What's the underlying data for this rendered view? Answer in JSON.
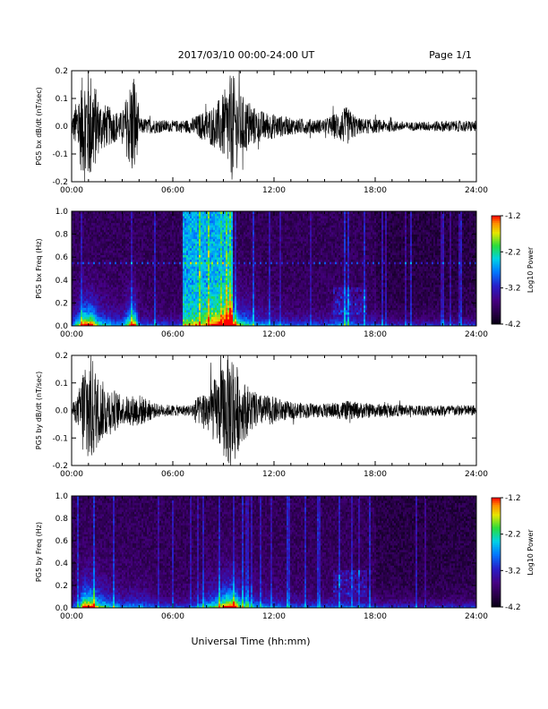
{
  "header": {
    "title": "2017/03/10   00:00-24:00 UT",
    "page": "Page 1/1"
  },
  "xlabel": "Universal Time (hh:mm)",
  "colorbar": {
    "label": "Log10 Power",
    "ticks": [
      "-1.2",
      "-2.2",
      "-3.2",
      "-4.2"
    ],
    "range": [
      -4.2,
      -1.2
    ]
  },
  "chart_data": [
    {
      "type": "line",
      "ylabel": "PG5 bx dB/dt (nT/sec)",
      "xlim": [
        0,
        24
      ],
      "ylim": [
        -0.2,
        0.2
      ],
      "x_ticks": [
        "00:00",
        "06:00",
        "12:00",
        "18:00",
        "24:00"
      ],
      "y_ticks": [
        "0.2",
        "0.1",
        "0.0",
        "-0.1",
        "-0.2"
      ],
      "envelope": [
        {
          "t": 0.0,
          "a": 0.03
        },
        {
          "t": 0.4,
          "a": 0.12
        },
        {
          "t": 0.8,
          "a": 0.22
        },
        {
          "t": 1.2,
          "a": 0.2
        },
        {
          "t": 1.6,
          "a": 0.1
        },
        {
          "t": 2.0,
          "a": 0.08
        },
        {
          "t": 2.5,
          "a": 0.06
        },
        {
          "t": 3.0,
          "a": 0.05
        },
        {
          "t": 3.7,
          "a": 0.22
        },
        {
          "t": 4.0,
          "a": 0.03
        },
        {
          "t": 5.0,
          "a": 0.025
        },
        {
          "t": 6.0,
          "a": 0.02
        },
        {
          "t": 7.0,
          "a": 0.025
        },
        {
          "t": 8.0,
          "a": 0.06
        },
        {
          "t": 8.5,
          "a": 0.08
        },
        {
          "t": 9.0,
          "a": 0.12
        },
        {
          "t": 9.5,
          "a": 0.2
        },
        {
          "t": 10.0,
          "a": 0.12
        },
        {
          "t": 11.0,
          "a": 0.06
        },
        {
          "t": 12.0,
          "a": 0.045
        },
        {
          "t": 13.0,
          "a": 0.03
        },
        {
          "t": 15.0,
          "a": 0.025
        },
        {
          "t": 16.3,
          "a": 0.07
        },
        {
          "t": 17.0,
          "a": 0.03
        },
        {
          "t": 18.0,
          "a": 0.025
        },
        {
          "t": 20.0,
          "a": 0.015
        },
        {
          "t": 22.0,
          "a": 0.02
        },
        {
          "t": 24.0,
          "a": 0.02
        }
      ]
    },
    {
      "type": "heatmap",
      "ylabel": "PG5 bx Freq (Hz)",
      "xlim": [
        0,
        24
      ],
      "ylim": [
        0,
        1.0
      ],
      "x_ticks": [
        "00:00",
        "06:00",
        "12:00",
        "18:00",
        "24:00"
      ],
      "y_ticks": [
        "1.0",
        "0.8",
        "0.6",
        "0.4",
        "0.2",
        "0.0"
      ],
      "band_hz": 0.55,
      "intense_block": {
        "t0": 6.6,
        "t1": 9.6,
        "level": 0.6
      }
    },
    {
      "type": "line",
      "ylabel": "PG5 by dB/dt (nT/sec)",
      "xlim": [
        0,
        24
      ],
      "ylim": [
        -0.2,
        0.2
      ],
      "x_ticks": [
        "00:00",
        "06:00",
        "12:00",
        "18:00",
        "24:00"
      ],
      "y_ticks": [
        "0.2",
        "0.1",
        "0.0",
        "-0.1",
        "-0.2"
      ],
      "envelope": [
        {
          "t": 0.0,
          "a": 0.02
        },
        {
          "t": 0.4,
          "a": 0.06
        },
        {
          "t": 0.8,
          "a": 0.22
        },
        {
          "t": 1.2,
          "a": 0.2
        },
        {
          "t": 1.6,
          "a": 0.12
        },
        {
          "t": 2.0,
          "a": 0.1
        },
        {
          "t": 2.5,
          "a": 0.08
        },
        {
          "t": 3.0,
          "a": 0.05
        },
        {
          "t": 4.0,
          "a": 0.06
        },
        {
          "t": 5.0,
          "a": 0.025
        },
        {
          "t": 6.0,
          "a": 0.02
        },
        {
          "t": 7.0,
          "a": 0.02
        },
        {
          "t": 8.0,
          "a": 0.08
        },
        {
          "t": 8.8,
          "a": 0.14
        },
        {
          "t": 9.5,
          "a": 0.24
        },
        {
          "t": 10.0,
          "a": 0.12
        },
        {
          "t": 11.0,
          "a": 0.06
        },
        {
          "t": 12.0,
          "a": 0.05
        },
        {
          "t": 13.0,
          "a": 0.03
        },
        {
          "t": 15.0,
          "a": 0.025
        },
        {
          "t": 16.3,
          "a": 0.035
        },
        {
          "t": 17.0,
          "a": 0.03
        },
        {
          "t": 18.0,
          "a": 0.025
        },
        {
          "t": 20.0,
          "a": 0.02
        },
        {
          "t": 22.0,
          "a": 0.02
        },
        {
          "t": 24.0,
          "a": 0.02
        }
      ]
    },
    {
      "type": "heatmap",
      "ylabel": "PG5 by Freq (Hz)",
      "xlim": [
        0,
        24
      ],
      "ylim": [
        0,
        1.0
      ],
      "x_ticks": [
        "00:00",
        "06:00",
        "12:00",
        "18:00",
        "24:00"
      ],
      "y_ticks": [
        "1.0",
        "0.8",
        "0.6",
        "0.4",
        "0.2",
        "0.0"
      ],
      "band_hz": null,
      "intense_block": null
    }
  ]
}
